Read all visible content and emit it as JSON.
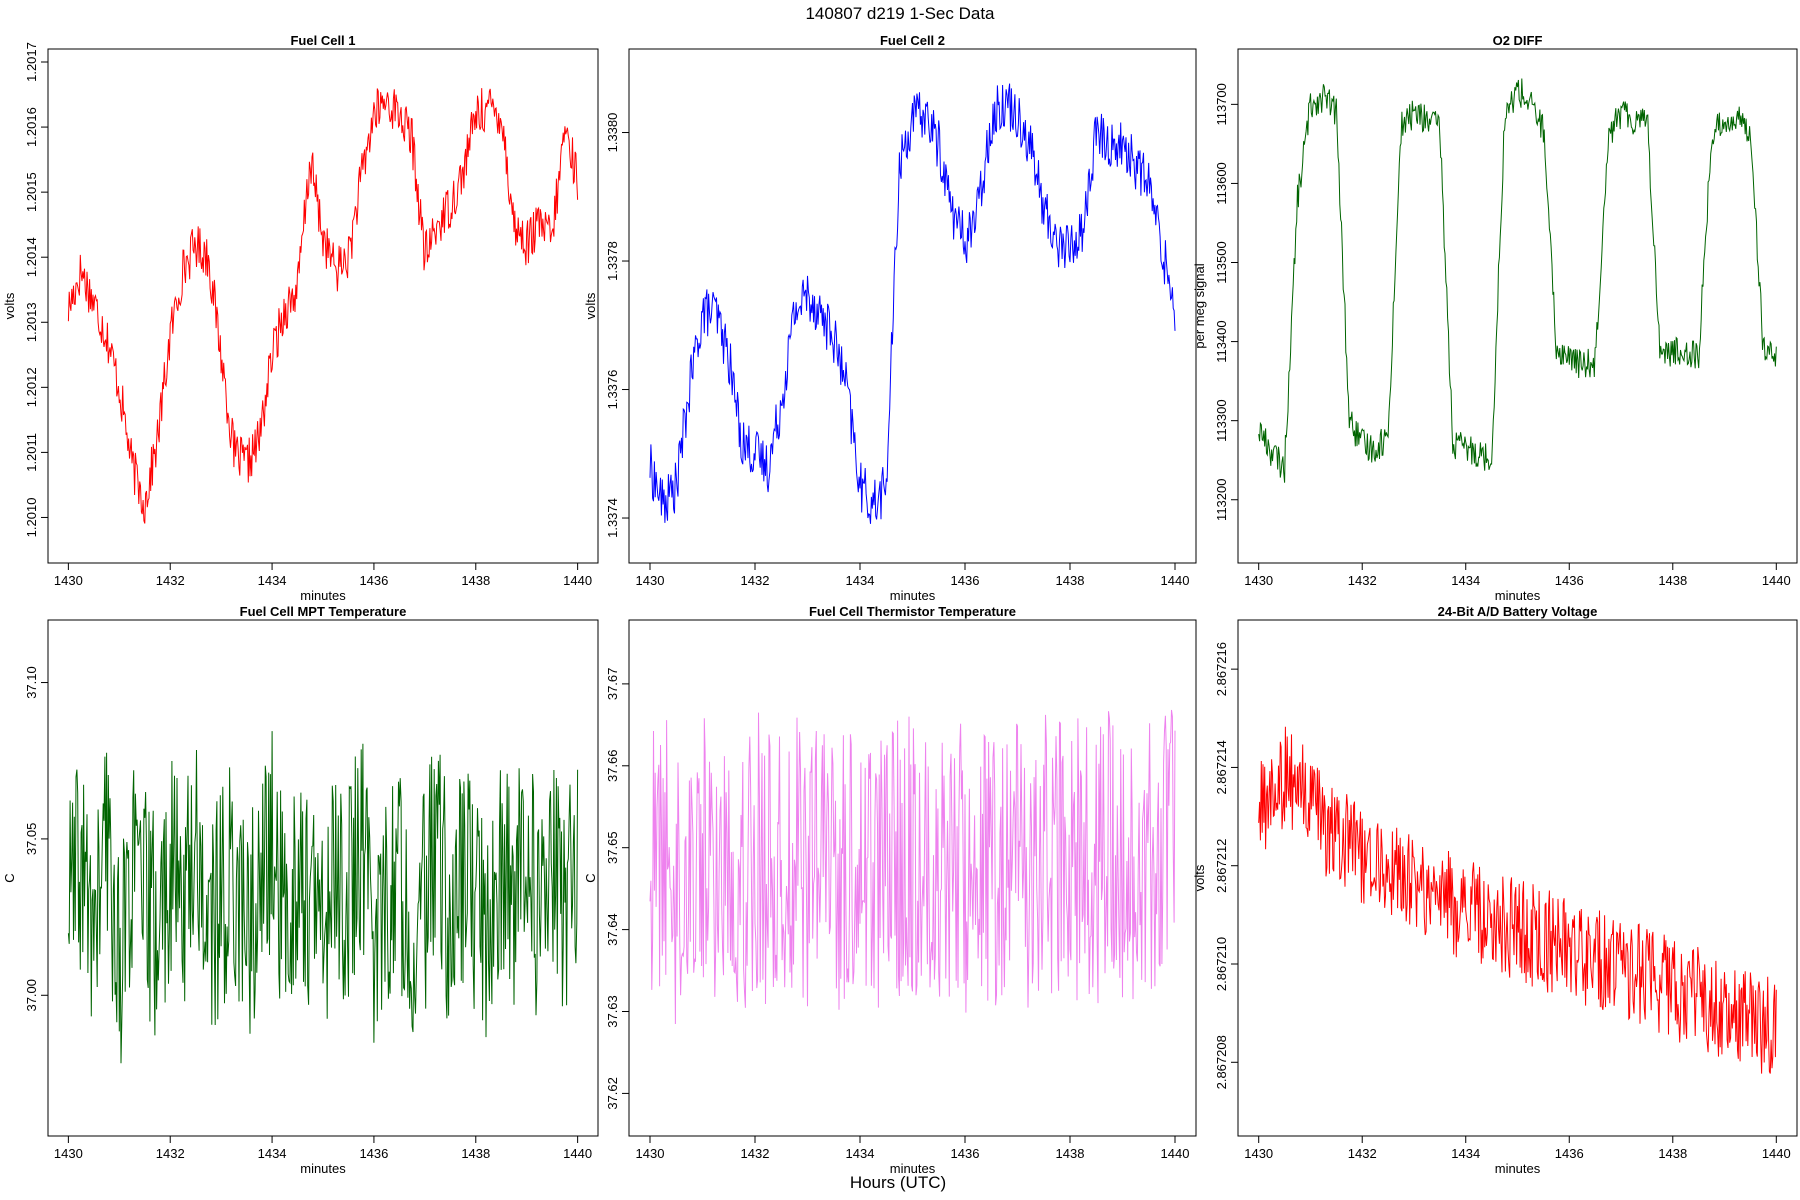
{
  "figure_title": "140807   d219   1-Sec Data",
  "footer_label": "Hours (UTC)",
  "chart_data": [
    {
      "type": "line",
      "title": "Fuel Cell 1",
      "xlabel": "minutes",
      "ylabel": "volts",
      "color": "#ff0000",
      "xlim": [
        1430,
        1440
      ],
      "ylim": [
        1.20093,
        1.20172
      ],
      "xticks": [
        1430,
        1432,
        1434,
        1436,
        1438,
        1440
      ],
      "xtick_labels": [
        "1430",
        "1432",
        "1434",
        "1436",
        "1438",
        "1440"
      ],
      "yticks": [
        1.201,
        1.2011,
        1.2012,
        1.2013,
        1.2014,
        1.2015,
        1.2016,
        1.2017
      ],
      "ytick_labels": [
        "1.2010",
        "1.2011",
        "1.2012",
        "1.2013",
        "1.2014",
        "1.2015",
        "1.2016",
        "1.2017"
      ],
      "series": [
        {
          "name": "Fuel Cell 1",
          "x": [
            1430.0,
            1430.25,
            1430.5,
            1430.75,
            1431.0,
            1431.25,
            1431.5,
            1431.75,
            1432.0,
            1432.25,
            1432.5,
            1432.75,
            1433.0,
            1433.25,
            1433.5,
            1433.75,
            1434.0,
            1434.25,
            1434.5,
            1434.75,
            1435.0,
            1435.25,
            1435.5,
            1435.75,
            1436.0,
            1436.25,
            1436.5,
            1436.75,
            1437.0,
            1437.25,
            1437.5,
            1437.75,
            1438.0,
            1438.25,
            1438.5,
            1438.75,
            1439.0,
            1439.25,
            1439.5,
            1439.75,
            1440.0
          ],
          "y": [
            1.20132,
            1.20138,
            1.20133,
            1.20128,
            1.2012,
            1.20108,
            1.20102,
            1.20112,
            1.20128,
            1.20138,
            1.20142,
            1.2014,
            1.20125,
            1.2011,
            1.20108,
            1.20112,
            1.20125,
            1.20132,
            1.20135,
            1.20155,
            1.20143,
            1.20138,
            1.2014,
            1.20152,
            1.20162,
            1.20164,
            1.20162,
            1.20158,
            1.2014,
            1.20145,
            1.20148,
            1.20153,
            1.20162,
            1.20163,
            1.20162,
            1.20145,
            1.20142,
            1.20145,
            1.20143,
            1.2016,
            1.20152
          ]
        }
      ]
    },
    {
      "type": "line",
      "title": "Fuel Cell 2",
      "xlabel": "minutes",
      "ylabel": "volts",
      "color": "#0000ff",
      "xlim": [
        1430,
        1440
      ],
      "ylim": [
        1.33733,
        1.33813
      ],
      "xticks": [
        1430,
        1432,
        1434,
        1436,
        1438,
        1440
      ],
      "xtick_labels": [
        "1430",
        "1432",
        "1434",
        "1436",
        "1438",
        "1440"
      ],
      "yticks": [
        1.3374,
        1.3376,
        1.3378,
        1.338
      ],
      "ytick_labels": [
        "1.3374",
        "1.3376",
        "1.3378",
        "1.3380"
      ],
      "series": [
        {
          "name": "Fuel Cell 2",
          "x": [
            1430.0,
            1430.25,
            1430.5,
            1430.75,
            1431.0,
            1431.25,
            1431.5,
            1431.75,
            1432.0,
            1432.25,
            1432.5,
            1432.75,
            1433.0,
            1433.25,
            1433.5,
            1433.75,
            1434.0,
            1434.25,
            1434.5,
            1434.75,
            1435.0,
            1435.25,
            1435.5,
            1435.75,
            1436.0,
            1436.25,
            1436.5,
            1436.75,
            1437.0,
            1437.25,
            1437.5,
            1437.75,
            1438.0,
            1438.25,
            1438.5,
            1438.75,
            1439.0,
            1439.25,
            1439.5,
            1439.75,
            1440.0
          ],
          "y": [
            1.33748,
            1.33742,
            1.33745,
            1.3376,
            1.33772,
            1.33772,
            1.33765,
            1.33752,
            1.3375,
            1.33748,
            1.33758,
            1.33772,
            1.33775,
            1.33772,
            1.33768,
            1.3376,
            1.33745,
            1.33742,
            1.33745,
            1.33795,
            1.33802,
            1.33803,
            1.33798,
            1.33788,
            1.33783,
            1.33788,
            1.33802,
            1.33805,
            1.33803,
            1.33798,
            1.33788,
            1.33783,
            1.33782,
            1.33785,
            1.338,
            1.33798,
            1.33798,
            1.33795,
            1.33792,
            1.33782,
            1.33773
          ]
        }
      ]
    },
    {
      "type": "line",
      "title": "O2 DIFF",
      "xlabel": "minutes",
      "ylabel": "per meg signal",
      "color": "#006400",
      "xlim": [
        1430,
        1440
      ],
      "ylim": [
        113120,
        113770
      ],
      "xticks": [
        1430,
        1432,
        1434,
        1436,
        1438,
        1440
      ],
      "xtick_labels": [
        "1430",
        "1432",
        "1434",
        "1436",
        "1438",
        "1440"
      ],
      "yticks": [
        113200,
        113300,
        113400,
        113500,
        113600,
        113700
      ],
      "ytick_labels": [
        "113200",
        "113300",
        "113400",
        "113500",
        "113600",
        "113700"
      ],
      "series": [
        {
          "name": "O2 DIFF",
          "x": [
            1430.0,
            1430.25,
            1430.5,
            1430.75,
            1431.0,
            1431.25,
            1431.5,
            1431.75,
            1432.0,
            1432.25,
            1432.5,
            1432.75,
            1433.0,
            1433.25,
            1433.5,
            1433.75,
            1434.0,
            1434.25,
            1434.5,
            1434.75,
            1435.0,
            1435.25,
            1435.5,
            1435.75,
            1436.0,
            1436.25,
            1436.5,
            1436.75,
            1437.0,
            1437.25,
            1437.5,
            1437.75,
            1438.0,
            1438.25,
            1438.5,
            1438.75,
            1439.0,
            1439.25,
            1439.5,
            1439.75,
            1440.0
          ],
          "y": [
            113290,
            113260,
            113240,
            113580,
            113700,
            113710,
            113690,
            113300,
            113270,
            113265,
            113280,
            113670,
            113690,
            113680,
            113670,
            113270,
            113265,
            113260,
            113250,
            113680,
            113720,
            113700,
            113670,
            113390,
            113380,
            113370,
            113375,
            113660,
            113690,
            113680,
            113690,
            113390,
            113385,
            113390,
            113380,
            113660,
            113680,
            113680,
            113670,
            113390,
            113375
          ]
        }
      ]
    },
    {
      "type": "line",
      "title": "Fuel Cell MPT Temperature",
      "xlabel": "minutes",
      "ylabel": "C",
      "color": "#006400",
      "xlim": [
        1430,
        1440
      ],
      "ylim": [
        36.955,
        37.12
      ],
      "xticks": [
        1430,
        1432,
        1434,
        1436,
        1438,
        1440
      ],
      "xtick_labels": [
        "1430",
        "1432",
        "1434",
        "1436",
        "1438",
        "1440"
      ],
      "yticks": [
        37.0,
        37.05,
        37.1
      ],
      "ytick_labels": [
        "37.00",
        "37.05",
        "37.10"
      ],
      "series": [
        {
          "name": "Fuel Cell MPT Temperature",
          "x": [
            1430.0,
            1430.25,
            1430.5,
            1430.75,
            1431.0,
            1431.25,
            1431.5,
            1431.75,
            1432.0,
            1432.25,
            1432.5,
            1432.75,
            1433.0,
            1433.25,
            1433.5,
            1433.75,
            1434.0,
            1434.25,
            1434.5,
            1434.75,
            1435.0,
            1435.25,
            1435.5,
            1435.75,
            1436.0,
            1436.25,
            1436.5,
            1436.75,
            1437.0,
            1437.25,
            1437.5,
            1437.75,
            1438.0,
            1438.25,
            1438.5,
            1438.75,
            1439.0,
            1439.25,
            1439.5,
            1439.75,
            1440.0
          ],
          "y": [
            37.03,
            37.04,
            37.02,
            37.05,
            37.01,
            37.04,
            37.03,
            37.02,
            37.04,
            37.03,
            37.05,
            37.02,
            37.03,
            37.04,
            37.02,
            37.03,
            37.05,
            37.02,
            37.04,
            37.03,
            37.02,
            37.04,
            37.03,
            37.05,
            37.02,
            37.03,
            37.04,
            37.02,
            37.03,
            37.05,
            37.02,
            37.04,
            37.03,
            37.02,
            37.04,
            37.03,
            37.05,
            37.02,
            37.04,
            37.03,
            37.04
          ]
        }
      ]
    },
    {
      "type": "line",
      "title": "Fuel Cell Thermistor Temperature",
      "xlabel": "minutes",
      "ylabel": "C",
      "color": "#ee82ee",
      "xlim": [
        1430,
        1440
      ],
      "ylim": [
        37.6148,
        37.6778
      ],
      "xticks": [
        1430,
        1432,
        1434,
        1436,
        1438,
        1440
      ],
      "xtick_labels": [
        "1430",
        "1432",
        "1434",
        "1436",
        "1438",
        "1440"
      ],
      "yticks": [
        37.62,
        37.63,
        37.64,
        37.65,
        37.66,
        37.67
      ],
      "ytick_labels": [
        "37.62",
        "37.63",
        "37.64",
        "37.65",
        "37.66",
        "37.67"
      ],
      "series": [
        {
          "name": "Fuel Cell Thermistor Temperature",
          "x": [
            1430.0,
            1430.25,
            1430.5,
            1430.75,
            1431.0,
            1431.25,
            1431.5,
            1431.75,
            1432.0,
            1432.25,
            1432.5,
            1432.75,
            1433.0,
            1433.25,
            1433.5,
            1433.75,
            1434.0,
            1434.25,
            1434.5,
            1434.75,
            1435.0,
            1435.25,
            1435.5,
            1435.75,
            1436.0,
            1436.25,
            1436.5,
            1436.75,
            1437.0,
            1437.25,
            1437.5,
            1437.75,
            1438.0,
            1438.25,
            1438.5,
            1438.75,
            1439.0,
            1439.25,
            1439.5,
            1439.75,
            1440.0
          ],
          "y": [
            37.647,
            37.65,
            37.645,
            37.648,
            37.65,
            37.646,
            37.649,
            37.647,
            37.65,
            37.648,
            37.646,
            37.65,
            37.647,
            37.649,
            37.648,
            37.646,
            37.65,
            37.647,
            37.649,
            37.648,
            37.65,
            37.646,
            37.648,
            37.649,
            37.647,
            37.65,
            37.648,
            37.646,
            37.649,
            37.647,
            37.65,
            37.648,
            37.647,
            37.649,
            37.646,
            37.65,
            37.648,
            37.647,
            37.649,
            37.648,
            37.65
          ]
        }
      ]
    },
    {
      "type": "line",
      "title": "24-Bit A/D Battery Voltage",
      "xlabel": "minutes",
      "ylabel": "volts",
      "color": "#ff0000",
      "xlim": [
        1430,
        1440
      ],
      "ylim": [
        2.8672065,
        2.867217
      ],
      "xticks": [
        1430,
        1432,
        1434,
        1436,
        1438,
        1440
      ],
      "xtick_labels": [
        "1430",
        "1432",
        "1434",
        "1436",
        "1438",
        "1440"
      ],
      "yticks": [
        2.867208,
        2.86721,
        2.867212,
        2.867214,
        2.867216
      ],
      "ytick_labels": [
        "2.867208",
        "2.867210",
        "2.867212",
        "2.867214",
        "2.867216"
      ],
      "series": [
        {
          "name": "24-Bit A/D Battery Voltage",
          "x": [
            1430.0,
            1430.25,
            1430.5,
            1430.75,
            1431.0,
            1431.25,
            1431.5,
            1431.75,
            1432.0,
            1432.25,
            1432.5,
            1432.75,
            1433.0,
            1433.25,
            1433.5,
            1433.75,
            1434.0,
            1434.25,
            1434.5,
            1434.75,
            1435.0,
            1435.25,
            1435.5,
            1435.75,
            1436.0,
            1436.25,
            1436.5,
            1436.75,
            1437.0,
            1437.25,
            1437.5,
            1437.75,
            1438.0,
            1438.25,
            1438.5,
            1438.75,
            1439.0,
            1439.25,
            1439.5,
            1439.75,
            1440.0
          ],
          "y": [
            2.867213,
            2.8672135,
            2.8672138,
            2.8672136,
            2.8672132,
            2.8672128,
            2.8672126,
            2.8672124,
            2.8672122,
            2.8672121,
            2.8672119,
            2.8672118,
            2.8672116,
            2.8672115,
            2.8672114,
            2.8672112,
            2.8672111,
            2.867211,
            2.8672109,
            2.8672108,
            2.8672107,
            2.8672106,
            2.8672105,
            2.8672104,
            2.8672103,
            2.8672102,
            2.8672101,
            2.86721,
            2.8672099,
            2.8672098,
            2.8672097,
            2.8672096,
            2.8672095,
            2.8672094,
            2.8672093,
            2.8672092,
            2.8672091,
            2.867209,
            2.8672089,
            2.8672088,
            2.8672087
          ]
        }
      ]
    }
  ]
}
